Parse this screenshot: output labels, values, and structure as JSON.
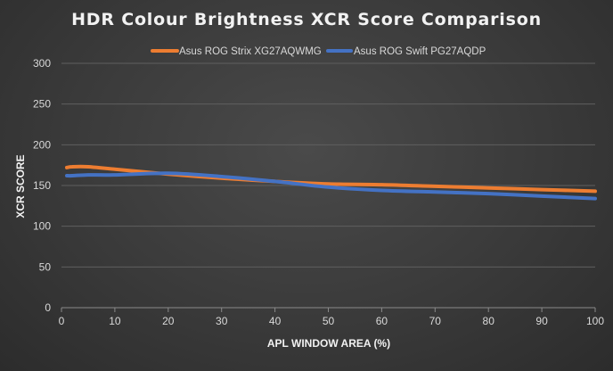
{
  "chart_data": {
    "type": "line",
    "title": "HDR Colour Brightness XCR Score Comparison",
    "xlabel": "APL WINDOW AREA (%)",
    "ylabel": "XCR SCORE",
    "xlim": [
      0,
      100
    ],
    "ylim": [
      0,
      300
    ],
    "x_ticks": [
      "0",
      "10",
      "20",
      "30",
      "40",
      "50",
      "60",
      "70",
      "80",
      "90",
      "100"
    ],
    "y_ticks": [
      "0",
      "50",
      "100",
      "150",
      "200",
      "250",
      "300"
    ],
    "grid": true,
    "legend_position": "top",
    "series": [
      {
        "name": "Asus ROG Strix XG27AQWMG",
        "color": "#ed7d31",
        "x": [
          1,
          2,
          5,
          10,
          20,
          30,
          40,
          50,
          60,
          70,
          80,
          90,
          100
        ],
        "y": [
          172,
          173,
          173,
          170,
          164,
          159,
          155,
          152,
          151,
          149,
          147,
          145,
          143
        ]
      },
      {
        "name": "Asus ROG Swift PG27AQDP",
        "color": "#4472c4",
        "x": [
          1,
          2,
          5,
          10,
          20,
          30,
          40,
          50,
          60,
          70,
          80,
          90,
          100
        ],
        "y": [
          162,
          162,
          163,
          163,
          165,
          161,
          155,
          148,
          144,
          142,
          140,
          137,
          134
        ]
      }
    ]
  }
}
